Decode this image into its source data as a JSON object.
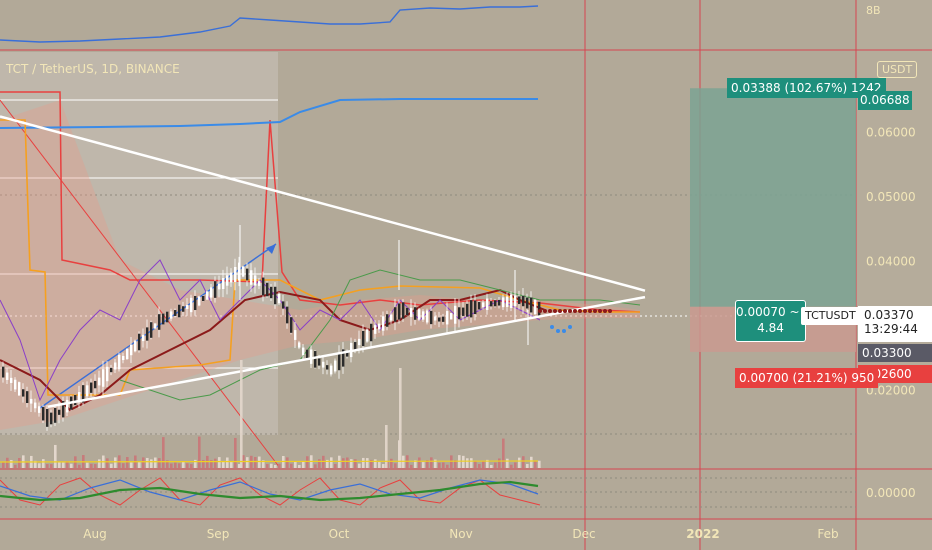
{
  "header": {
    "symbol_title": "TCT / TetherUS, 1D, BINANCE",
    "currency_button": "USDT"
  },
  "top_pane": {
    "scale_label": "8B"
  },
  "colors": {
    "background": "#b2a998",
    "white_line": "#ffffff",
    "blue_line": "#3a6fd8",
    "red_line": "#e8403f",
    "orange_line": "#f5a020",
    "darkred_line": "#8b1a1a",
    "purple_line": "#8a3fc8",
    "green_line": "#2e8b2e",
    "profit_zone": "#7ba393",
    "loss_zone": "#c99a8f",
    "teal_badge": "#1e8f7c",
    "red_badge": "#e8403f",
    "divider": "#d64550"
  },
  "chart_data": {
    "type": "line",
    "symbol": "TCTUSDT",
    "y_axis": {
      "ticks": [
        "0.06000",
        "0.05000",
        "0.04000",
        "0.02000"
      ],
      "ylim": [
        0.0125,
        0.0725
      ]
    },
    "x_axis": {
      "ticks": [
        "Aug",
        "Sep",
        "Oct",
        "Nov",
        "Dec",
        "2022",
        "Feb"
      ]
    },
    "price_labels": {
      "target": "0.06688",
      "current": "0.03370",
      "countdown": "13:29:44",
      "entry": "0.03300",
      "stop": "0.02600"
    },
    "position_tool": {
      "profit_label": "0.03388 (102.67%) 1242",
      "loss_label": "0.00700 (21.21%) 950",
      "center_line1": "0.00070 ~ 3",
      "center_line2": "4.84",
      "ticker": "TCTUSDT",
      "target": 0.06688,
      "entry": 0.033,
      "stop": 0.026
    },
    "triangle": {
      "upper": [
        {
          "x": 0,
          "y": 0.0625
        },
        {
          "x": 645,
          "y": 0.0355
        }
      ],
      "lower": [
        {
          "x": 48,
          "y": 0.0175
        },
        {
          "x": 645,
          "y": 0.0345
        }
      ]
    },
    "sub_pane": {
      "ticks": [
        "0.00000"
      ]
    }
  }
}
